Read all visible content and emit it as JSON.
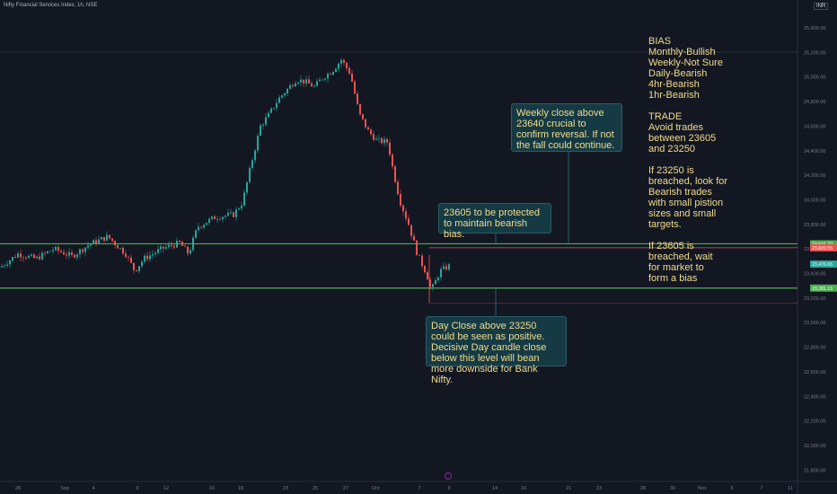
{
  "header": {
    "symbol": "Nifty Financial Services Index, 1h, NSE",
    "currency": "INR"
  },
  "annotations": {
    "weekly": "Weekly close above 23640 crucial to confirm reversal. If not the fall could continue.",
    "protect": "23605 to be protected to maintain bearish bias.",
    "dayclose": "Day Close above 23250 could be seen as positive. Decisive Day candle close below this level will bean more downside for Bank Nifty.",
    "side": "BIAS\nMonthly-Bullish\nWeekly-Not Sure\nDaily-Bearish\n4hr-Bearish\n1hr-Bearish\n\nTRADE\nAvoid trades\nbetween 23605\nand 23250\n\nIf 23250 is\nbreached, look for\nBearish trades\nwith small pistion\nsizes and small\ntargets.\n\nIf 23605 is\nbreached, wait\nfor market to\nform a bias"
  },
  "chart_data": {
    "type": "candlestick",
    "title": "Nifty Financial Services Index, 1h, NSE",
    "y_ticks": [
      25400,
      25200,
      25000,
      24800,
      24600,
      24400,
      24200,
      24000,
      23800,
      23600,
      23400,
      23200,
      23000,
      22800,
      22600,
      22400,
      22200,
      22000,
      21800
    ],
    "y_tick_labels": [
      "25,400.00",
      "25,200.00",
      "25,000.00",
      "24,800.00",
      "24,600.00",
      "24,400.00",
      "24,200.00",
      "24,000.00",
      "23,800.00",
      "23,600.00",
      "23,400.00",
      "23,200.00",
      "23,000.00",
      "22,800.00",
      "22,600.00",
      "22,400.00",
      "22,200.00",
      "22,000.00",
      "21,800.00"
    ],
    "ylim": [
      21720,
      25480
    ],
    "x_tick_labels": [
      "28",
      "Sep",
      "4",
      "9",
      "12",
      "16",
      "18",
      "23",
      "25",
      "27",
      "Oct",
      "7",
      "9",
      "14",
      "16",
      "21",
      "23",
      "28",
      "30",
      "Nov",
      "5",
      "7",
      "11"
    ],
    "horizontal_levels": [
      {
        "value": 23641.7,
        "label": "23,641.70",
        "color": "#4caf50"
      },
      {
        "value": 23609.55,
        "label": "23,609.55",
        "color": "#ef5350"
      },
      {
        "value": 23476.65,
        "label": "23,476.65",
        "color": "#26a69a"
      },
      {
        "value": 23281.15,
        "label": "23,281.15",
        "color": "#4caf50"
      }
    ],
    "close_path": [
      [
        0,
        23450
      ],
      [
        20,
        23560
      ],
      [
        40,
        23520
      ],
      [
        60,
        23600
      ],
      [
        80,
        23540
      ],
      [
        100,
        23640
      ],
      [
        120,
        23700
      ],
      [
        140,
        23560
      ],
      [
        150,
        23420
      ],
      [
        160,
        23520
      ],
      [
        180,
        23600
      ],
      [
        200,
        23650
      ],
      [
        210,
        23560
      ],
      [
        220,
        23780
      ],
      [
        240,
        23860
      ],
      [
        260,
        23880
      ],
      [
        270,
        23980
      ],
      [
        280,
        24300
      ],
      [
        290,
        24600
      ],
      [
        300,
        24700
      ],
      [
        310,
        24820
      ],
      [
        320,
        24900
      ],
      [
        330,
        24980
      ],
      [
        340,
        24960
      ],
      [
        350,
        24920
      ],
      [
        360,
        25000
      ],
      [
        370,
        25050
      ],
      [
        380,
        25140
      ],
      [
        390,
        25030
      ],
      [
        400,
        24700
      ],
      [
        410,
        24560
      ],
      [
        420,
        24480
      ],
      [
        432,
        24470
      ],
      [
        436,
        24300
      ],
      [
        445,
        24000
      ],
      [
        455,
        23800
      ],
      [
        465,
        23550
      ],
      [
        475,
        23400
      ],
      [
        480,
        23260
      ],
      [
        484,
        23320
      ],
      [
        490,
        23420
      ],
      [
        500,
        23460
      ]
    ],
    "bars_per_unit": 0.25
  }
}
